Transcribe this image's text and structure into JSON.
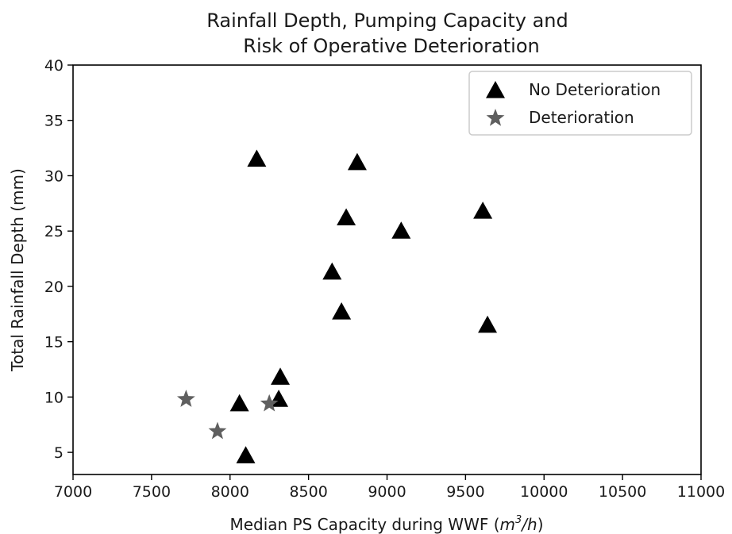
{
  "chart_data": {
    "type": "scatter",
    "title_lines": [
      "Rainfall Depth, Pumping Capacity and",
      "Risk of Operative Deterioration"
    ],
    "xlabel_prefix": "Median PS Capacity during WWF (",
    "xlabel_unit_m": "m",
    "xlabel_unit_exp": "3",
    "xlabel_unit_rest": "/h",
    "xlabel_suffix": ")",
    "ylabel": "Total Rainfall Depth (mm)",
    "xlim": [
      7000,
      11000
    ],
    "ylim": [
      3,
      40
    ],
    "xticks": [
      7000,
      7500,
      8000,
      8500,
      9000,
      9500,
      10000,
      10500,
      11000
    ],
    "yticks": [
      5,
      10,
      15,
      20,
      25,
      30,
      35,
      40
    ],
    "legend_position": "top-right",
    "series": [
      {
        "name": "No Deterioration",
        "marker": "triangle",
        "color": "#000000",
        "points": [
          [
            8170,
            31.5
          ],
          [
            8810,
            31.2
          ],
          [
            8740,
            26.2
          ],
          [
            9090,
            25.0
          ],
          [
            9610,
            26.8
          ],
          [
            8650,
            21.3
          ],
          [
            8710,
            17.7
          ],
          [
            9640,
            16.5
          ],
          [
            8320,
            11.8
          ],
          [
            8310,
            9.8
          ],
          [
            8060,
            9.4
          ],
          [
            8100,
            4.7
          ]
        ]
      },
      {
        "name": "Deterioration",
        "marker": "star",
        "color": "#5f5f5f",
        "points": [
          [
            7720,
            9.8
          ],
          [
            8250,
            9.4
          ],
          [
            7920,
            6.9
          ]
        ]
      }
    ]
  }
}
